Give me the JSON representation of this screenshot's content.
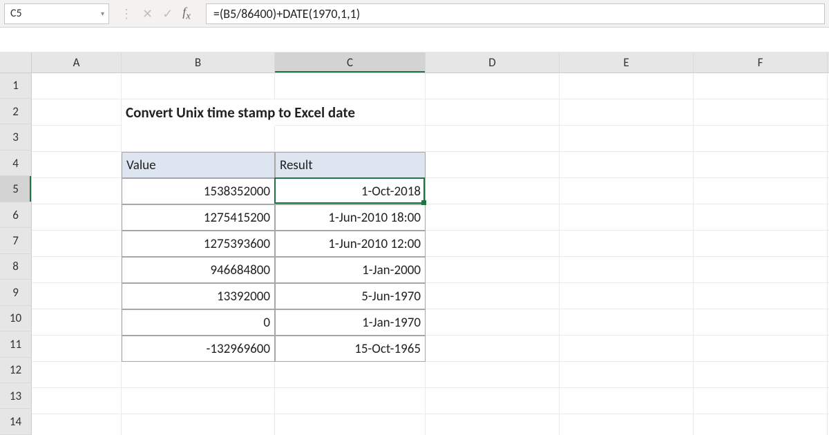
{
  "nameBox": "C5",
  "formula": "=(B5/86400)+DATE(1970,1,1)",
  "columnWidths": {
    "A": 130,
    "B": 222,
    "C": 218,
    "D": 194,
    "E": 194,
    "F": 194,
    "G": 60
  },
  "columnOrder": [
    "A",
    "B",
    "C",
    "D",
    "E",
    "F",
    "G"
  ],
  "rowCount": 14,
  "selectedCell": {
    "col": "C",
    "row": 5
  },
  "title": {
    "text": "Convert Unix time stamp to Excel date",
    "row": 2,
    "col": "B"
  },
  "tableHeader": {
    "row": 4,
    "cols": {
      "B": "Value",
      "C": "Result"
    }
  },
  "tableData": [
    {
      "row": 5,
      "value": "1538352000",
      "result": "1-Oct-2018"
    },
    {
      "row": 6,
      "value": "1275415200",
      "result": "1-Jun-2010 18:00"
    },
    {
      "row": 7,
      "value": "1275393600",
      "result": "1-Jun-2010 12:00"
    },
    {
      "row": 8,
      "value": "946684800",
      "result": "1-Jan-2000"
    },
    {
      "row": 9,
      "value": "13392000",
      "result": "5-Jun-1970"
    },
    {
      "row": 10,
      "value": "0",
      "result": "1-Jan-1970"
    },
    {
      "row": 11,
      "value": "-132969600",
      "result": "15-Oct-1965"
    }
  ],
  "colors": {
    "headerFill": "#dde5f0",
    "tableBorder": "#a6a6a6",
    "selection": "#217346",
    "rowColHeadBg": "#e6e6e6"
  }
}
